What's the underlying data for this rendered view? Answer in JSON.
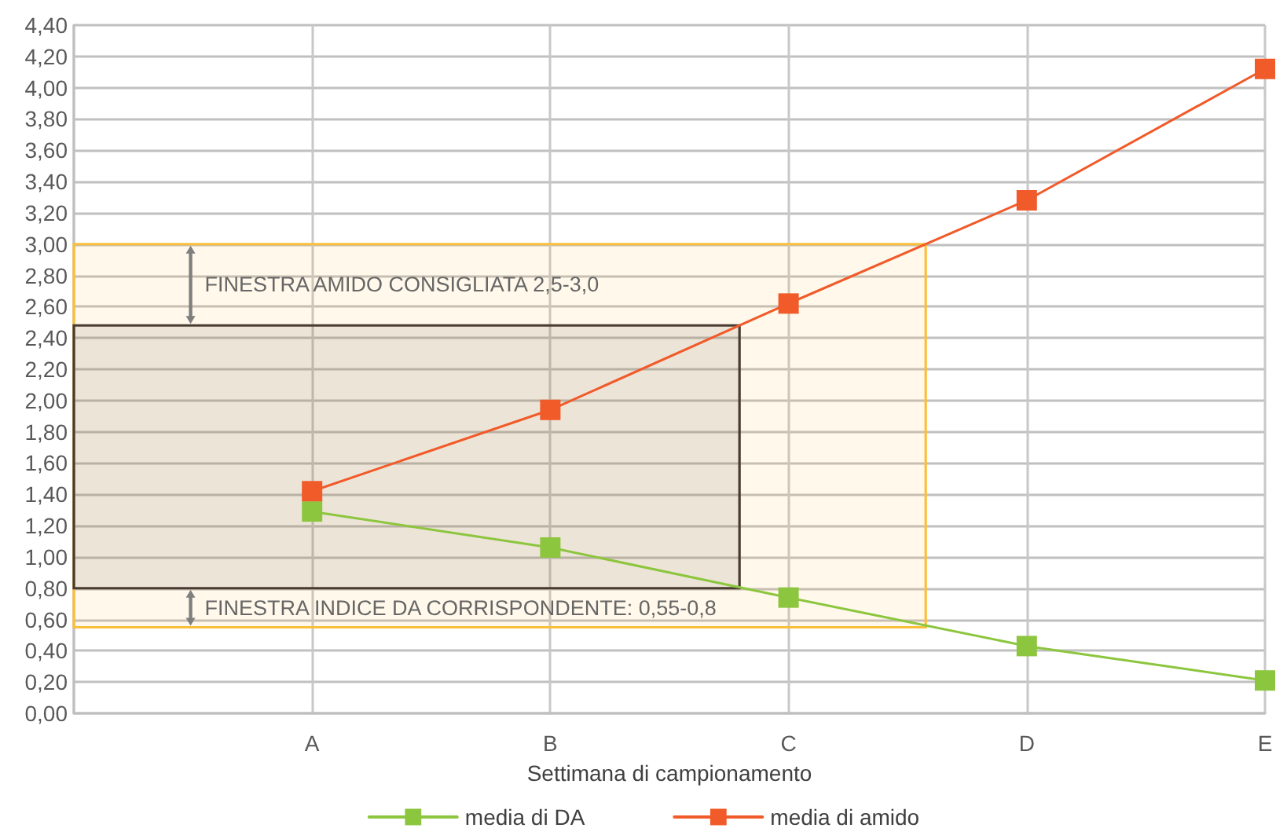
{
  "chart_data": {
    "type": "line",
    "xlabel": "Settimana di campionamento",
    "categories": [
      null,
      "A",
      "B",
      "C",
      "D",
      "E"
    ],
    "series": [
      {
        "name": "media di DA",
        "color": "#8cc63e",
        "values": [
          null,
          1.29,
          1.06,
          0.74,
          0.43,
          0.21
        ]
      },
      {
        "name": "media di amido",
        "color": "#f15a29",
        "values": [
          null,
          1.42,
          1.94,
          2.62,
          3.28,
          4.12
        ]
      }
    ],
    "ylim": [
      0,
      4.4
    ],
    "yticks": [
      {
        "value": 0,
        "label": "0,00"
      },
      {
        "value": 0.2,
        "label": "0,20"
      },
      {
        "value": 0.4,
        "label": "0,40"
      },
      {
        "value": 0.6,
        "label": "0,60"
      },
      {
        "value": 0.8,
        "label": "0,80"
      },
      {
        "value": 1,
        "label": "1,00"
      },
      {
        "value": 1.2,
        "label": "1,20"
      },
      {
        "value": 1.4,
        "label": "1,40"
      },
      {
        "value": 1.6,
        "label": "1,60"
      },
      {
        "value": 1.8,
        "label": "1,80"
      },
      {
        "value": 2,
        "label": "2,00"
      },
      {
        "value": 2.2,
        "label": "2,20"
      },
      {
        "value": 2.4,
        "label": "2,40"
      },
      {
        "value": 2.6,
        "label": "2,60"
      },
      {
        "value": 2.8,
        "label": "2,80"
      },
      {
        "value": 3,
        "label": "3,00"
      },
      {
        "value": 3.2,
        "label": "3,20"
      },
      {
        "value": 3.4,
        "label": "3,40"
      },
      {
        "value": 3.6,
        "label": "3,60"
      },
      {
        "value": 3.8,
        "label": "3,80"
      },
      {
        "value": 4,
        "label": "4,00"
      },
      {
        "value": 4.2,
        "label": "4,20"
      },
      {
        "value": 4.4,
        "label": "4,40"
      }
    ],
    "bands": [
      {
        "axis": "y",
        "from": 0.55,
        "to": 3.0,
        "color": "#fbbf3b"
      },
      {
        "axis": "y",
        "from": 0.8,
        "to": 2.48,
        "color": "#4a3b30"
      }
    ],
    "annotations": [
      "FINESTRA AMIDO CONSIGLIATA 2,5-3,0",
      "FINESTRA INDICE DA CORRISPONDENTE: 0,55-0,8"
    ],
    "grid": true,
    "legend": "bottom",
    "marker": "square",
    "line_style": "solid"
  }
}
